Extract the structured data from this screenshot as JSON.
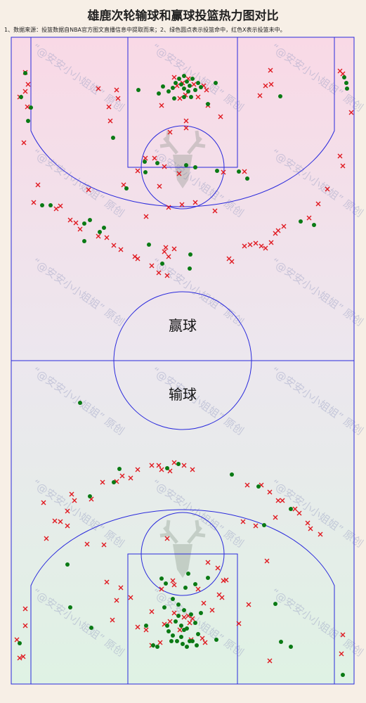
{
  "title": "雄鹿次轮输球和赢球投篮热力图对比",
  "note": "1、数据来源：投篮数据自NBA官方图文直播信息中提取而来；2、绿色圆点表示投篮命中，红色X表示投篮未中。",
  "watermark": "“@安安小小姐姐” 原创",
  "colors": {
    "made": "#0a7a14",
    "missed": "#e0181f",
    "court_line": "#2a2adc",
    "win_bg_top": "#f9d9e6",
    "loss_bg_bottom": "#dff2e4"
  },
  "chart_data": {
    "type": "scatter",
    "title": "雄鹿次轮输球和赢球投篮热力图对比",
    "legend": [
      {
        "name": "投篮命中",
        "marker": "green-dot"
      },
      {
        "name": "投篮未中",
        "marker": "red-x"
      }
    ],
    "halves": [
      {
        "label": "赢球",
        "made": [
          [
            36,
            104
          ],
          [
            30,
            138
          ],
          [
            44,
            153
          ],
          [
            40,
            172
          ],
          [
            197,
            128
          ],
          [
            226,
            133
          ],
          [
            232,
            123
          ],
          [
            240,
            130
          ],
          [
            246,
            125
          ],
          [
            250,
            118
          ],
          [
            255,
            112
          ],
          [
            262,
            108
          ],
          [
            266,
            116
          ],
          [
            270,
            122
          ],
          [
            274,
            112
          ],
          [
            278,
            128
          ],
          [
            282,
            118
          ],
          [
            286,
            124
          ],
          [
            262,
            126
          ],
          [
            268,
            130
          ],
          [
            258,
            120
          ],
          [
            272,
            138
          ],
          [
            248,
            140
          ],
          [
            296,
            148
          ],
          [
            307,
            118
          ],
          [
            399,
            137
          ],
          [
            490,
            110
          ],
          [
            493,
            118
          ],
          [
            494,
            126
          ],
          [
            161,
            196
          ],
          [
            206,
            230
          ],
          [
            224,
            232
          ],
          [
            207,
            245
          ],
          [
            265,
            235
          ],
          [
            278,
            238
          ],
          [
            309,
            243
          ],
          [
            340,
            244
          ],
          [
            352,
            254
          ],
          [
            180,
            268
          ],
          [
            60,
            292
          ],
          [
            72,
            292
          ],
          [
            128,
            313
          ],
          [
            120,
            318
          ],
          [
            148,
            324
          ],
          [
            120,
            343
          ],
          [
            142,
            330
          ],
          [
            212,
            348
          ],
          [
            231,
            375
          ],
          [
            271,
            362
          ],
          [
            270,
            382
          ],
          [
            428,
            315
          ],
          [
            447,
            320
          ],
          [
            262,
            138
          ]
        ],
        "missed": [
          [
            36,
            103
          ],
          [
            40,
            120
          ],
          [
            36,
            130
          ],
          [
            28,
            138
          ],
          [
            39,
            152
          ],
          [
            34,
            203
          ],
          [
            54,
            263
          ],
          [
            48,
            288
          ],
          [
            140,
            126
          ],
          [
            155,
            152
          ],
          [
            157,
            172
          ],
          [
            166,
            128
          ],
          [
            168,
            140
          ],
          [
            230,
            150
          ],
          [
            248,
            110
          ],
          [
            252,
            122
          ],
          [
            256,
            140
          ],
          [
            260,
            118
          ],
          [
            268,
            112
          ],
          [
            264,
            135
          ],
          [
            276,
            120
          ],
          [
            290,
            122
          ],
          [
            294,
            128
          ],
          [
            296,
            150
          ],
          [
            314,
            166
          ],
          [
            282,
            138
          ],
          [
            242,
            188
          ],
          [
            265,
            172
          ],
          [
            265,
            182
          ],
          [
            207,
            225
          ],
          [
            196,
            243
          ],
          [
            227,
            265
          ],
          [
            220,
            225
          ],
          [
            234,
            237
          ],
          [
            255,
            247
          ],
          [
            240,
            295
          ],
          [
            259,
            291
          ],
          [
            278,
            288
          ],
          [
            318,
            245
          ],
          [
            348,
            244
          ],
          [
            370,
            136
          ],
          [
            385,
            100
          ],
          [
            378,
            122
          ],
          [
            386,
            120
          ],
          [
            484,
            101
          ],
          [
            488,
            105
          ],
          [
            500,
            160
          ],
          [
            484,
            222
          ],
          [
            488,
            236
          ],
          [
            466,
            269
          ],
          [
            453,
            290
          ],
          [
            440,
            310
          ],
          [
            404,
            322
          ],
          [
            392,
            332
          ],
          [
            396,
            328
          ],
          [
            386,
            345
          ],
          [
            378,
            353
          ],
          [
            372,
            350
          ],
          [
            364,
            346
          ],
          [
            356,
            348
          ],
          [
            348,
            350
          ],
          [
            326,
            368
          ],
          [
            330,
            372
          ],
          [
            306,
            300
          ],
          [
            208,
            308
          ],
          [
            176,
            263
          ],
          [
            126,
            270
          ],
          [
            86,
            293
          ],
          [
            80,
            297
          ],
          [
            100,
            313
          ],
          [
            108,
            317
          ],
          [
            114,
            326
          ],
          [
            140,
            336
          ],
          [
            152,
            338
          ],
          [
            162,
            349
          ],
          [
            172,
            355
          ],
          [
            196,
            368
          ],
          [
            216,
            378
          ],
          [
            234,
            358
          ],
          [
            236,
            352
          ],
          [
            248,
            354
          ],
          [
            240,
            365
          ],
          [
            238,
            392
          ],
          [
            226,
            388
          ],
          [
            192,
            365
          ]
        ]
      },
      {
        "label": "输球",
        "made": [
          [
            114,
            573
          ],
          [
            170,
            667
          ],
          [
            238,
            666
          ],
          [
            254,
            660
          ],
          [
            162,
            686
          ],
          [
            128,
            706
          ],
          [
            330,
            675
          ],
          [
            368,
            692
          ],
          [
            414,
            724
          ],
          [
            376,
            747
          ],
          [
            96,
            803
          ],
          [
            230,
            823
          ],
          [
            236,
            830
          ],
          [
            268,
            816
          ],
          [
            278,
            831
          ],
          [
            296,
            822
          ],
          [
            246,
            852
          ],
          [
            254,
            860
          ],
          [
            262,
            868
          ],
          [
            272,
            874
          ],
          [
            254,
            876
          ],
          [
            250,
            884
          ],
          [
            258,
            890
          ],
          [
            266,
            894
          ],
          [
            240,
            898
          ],
          [
            246,
            904
          ],
          [
            252,
            912
          ],
          [
            260,
            916
          ],
          [
            266,
            920
          ],
          [
            274,
            912
          ],
          [
            282,
            902
          ],
          [
            278,
            886
          ],
          [
            286,
            872
          ],
          [
            234,
            864
          ],
          [
            238,
            890
          ],
          [
            208,
            890
          ],
          [
            218,
            918
          ],
          [
            224,
            920
          ],
          [
            244,
            912
          ],
          [
            258,
            906
          ],
          [
            270,
            912
          ],
          [
            280,
            918
          ],
          [
            130,
            893
          ],
          [
            100,
            864
          ],
          [
            308,
            910
          ],
          [
            400,
            913
          ],
          [
            392,
            859
          ],
          [
            414,
            920
          ],
          [
            28,
            915
          ],
          [
            488,
            960
          ],
          [
            264,
            836
          ],
          [
            262,
            896
          ]
        ],
        "missed": [
          [
            166,
            685
          ],
          [
            174,
            677
          ],
          [
            186,
            680
          ],
          [
            196,
            668
          ],
          [
            216,
            662
          ],
          [
            230,
            668
          ],
          [
            248,
            658
          ],
          [
            262,
            662
          ],
          [
            274,
            668
          ],
          [
            242,
            670
          ],
          [
            226,
            662
          ],
          [
            102,
            703
          ],
          [
            106,
            712
          ],
          [
            146,
            686
          ],
          [
            130,
            710
          ],
          [
            62,
            715
          ],
          [
            96,
            727
          ],
          [
            96,
            748
          ],
          [
            86,
            742
          ],
          [
            78,
            741
          ],
          [
            66,
            766
          ],
          [
            124,
            774
          ],
          [
            148,
            775
          ],
          [
            352,
            690
          ],
          [
            372,
            690
          ],
          [
            384,
            700
          ],
          [
            396,
            712
          ],
          [
            402,
            712
          ],
          [
            392,
            736
          ],
          [
            420,
            724
          ],
          [
            426,
            730
          ],
          [
            438,
            744
          ],
          [
            442,
            752
          ],
          [
            456,
            760
          ],
          [
            346,
            742
          ],
          [
            380,
            798
          ],
          [
            364,
            748
          ],
          [
            238,
            766
          ],
          [
            296,
            800
          ],
          [
            322,
            825
          ],
          [
            310,
            808
          ],
          [
            318,
            826
          ],
          [
            268,
            876
          ],
          [
            230,
            838
          ],
          [
            246,
            826
          ],
          [
            248,
            832
          ],
          [
            282,
            838
          ],
          [
            312,
            846
          ],
          [
            316,
            850
          ],
          [
            290,
            858
          ],
          [
            302,
            868
          ],
          [
            262,
            878
          ],
          [
            274,
            880
          ],
          [
            242,
            884
          ],
          [
            248,
            872
          ],
          [
            234,
            888
          ],
          [
            256,
            896
          ],
          [
            270,
            886
          ],
          [
            288,
            908
          ],
          [
            292,
            914
          ],
          [
            216,
            870
          ],
          [
            196,
            892
          ],
          [
            208,
            896
          ],
          [
            166,
            854
          ],
          [
            160,
            882
          ],
          [
            186,
            850
          ],
          [
            172,
            836
          ],
          [
            152,
            828
          ],
          [
            216,
            918
          ],
          [
            272,
            910
          ],
          [
            228,
            914
          ],
          [
            354,
            860
          ],
          [
            340,
            887
          ],
          [
            384,
            940
          ],
          [
            488,
            903
          ],
          [
            486,
            930
          ],
          [
            36,
            866
          ],
          [
            36,
            890
          ],
          [
            28,
            936
          ],
          [
            33,
            934
          ],
          [
            24,
            910
          ]
        ]
      }
    ]
  }
}
